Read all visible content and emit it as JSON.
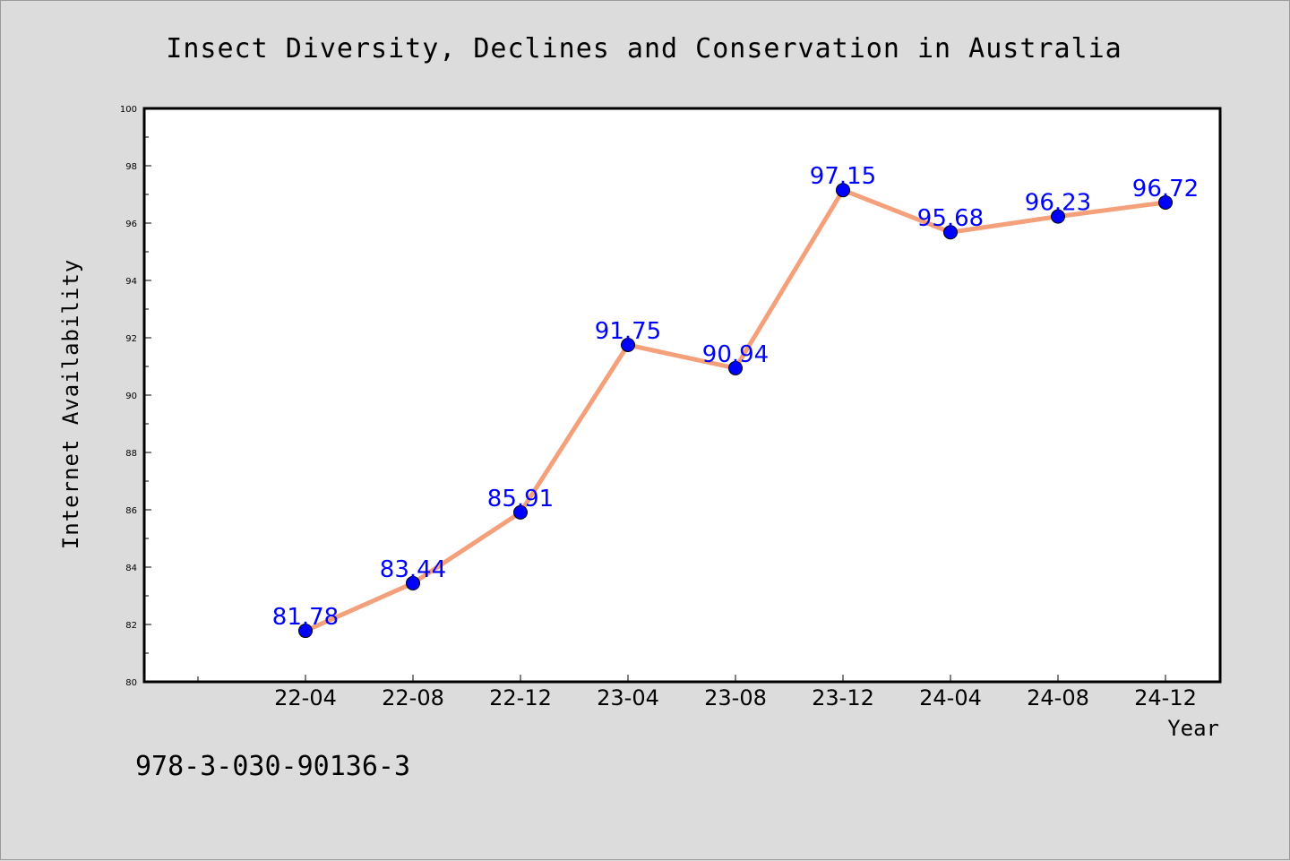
{
  "chart_data": {
    "type": "line",
    "title": "Insect Diversity, Declines and Conservation in Australia",
    "xlabel": "Year",
    "ylabel": "Internet Availability",
    "x": [
      "22-04",
      "22-08",
      "22-12",
      "23-04",
      "23-08",
      "23-12",
      "24-04",
      "24-08",
      "24-12"
    ],
    "values": [
      81.78,
      83.44,
      85.91,
      91.75,
      90.94,
      97.15,
      95.68,
      96.23,
      96.72
    ],
    "value_labels": [
      "81.78",
      "83.44",
      "85.91",
      "91.75",
      "90.94",
      "97.15",
      "95.68",
      "96.23",
      "96.72"
    ],
    "ylim": [
      80,
      100
    ],
    "yticks": [
      "80",
      "82",
      "84",
      "86",
      "88",
      "90",
      "92",
      "94",
      "96",
      "98",
      "100"
    ],
    "grid": false,
    "line_color": "#f4a07a",
    "marker_color": "#0000ff",
    "label_color": "#0000ff"
  },
  "annotation": "978-3-030-90136-3"
}
